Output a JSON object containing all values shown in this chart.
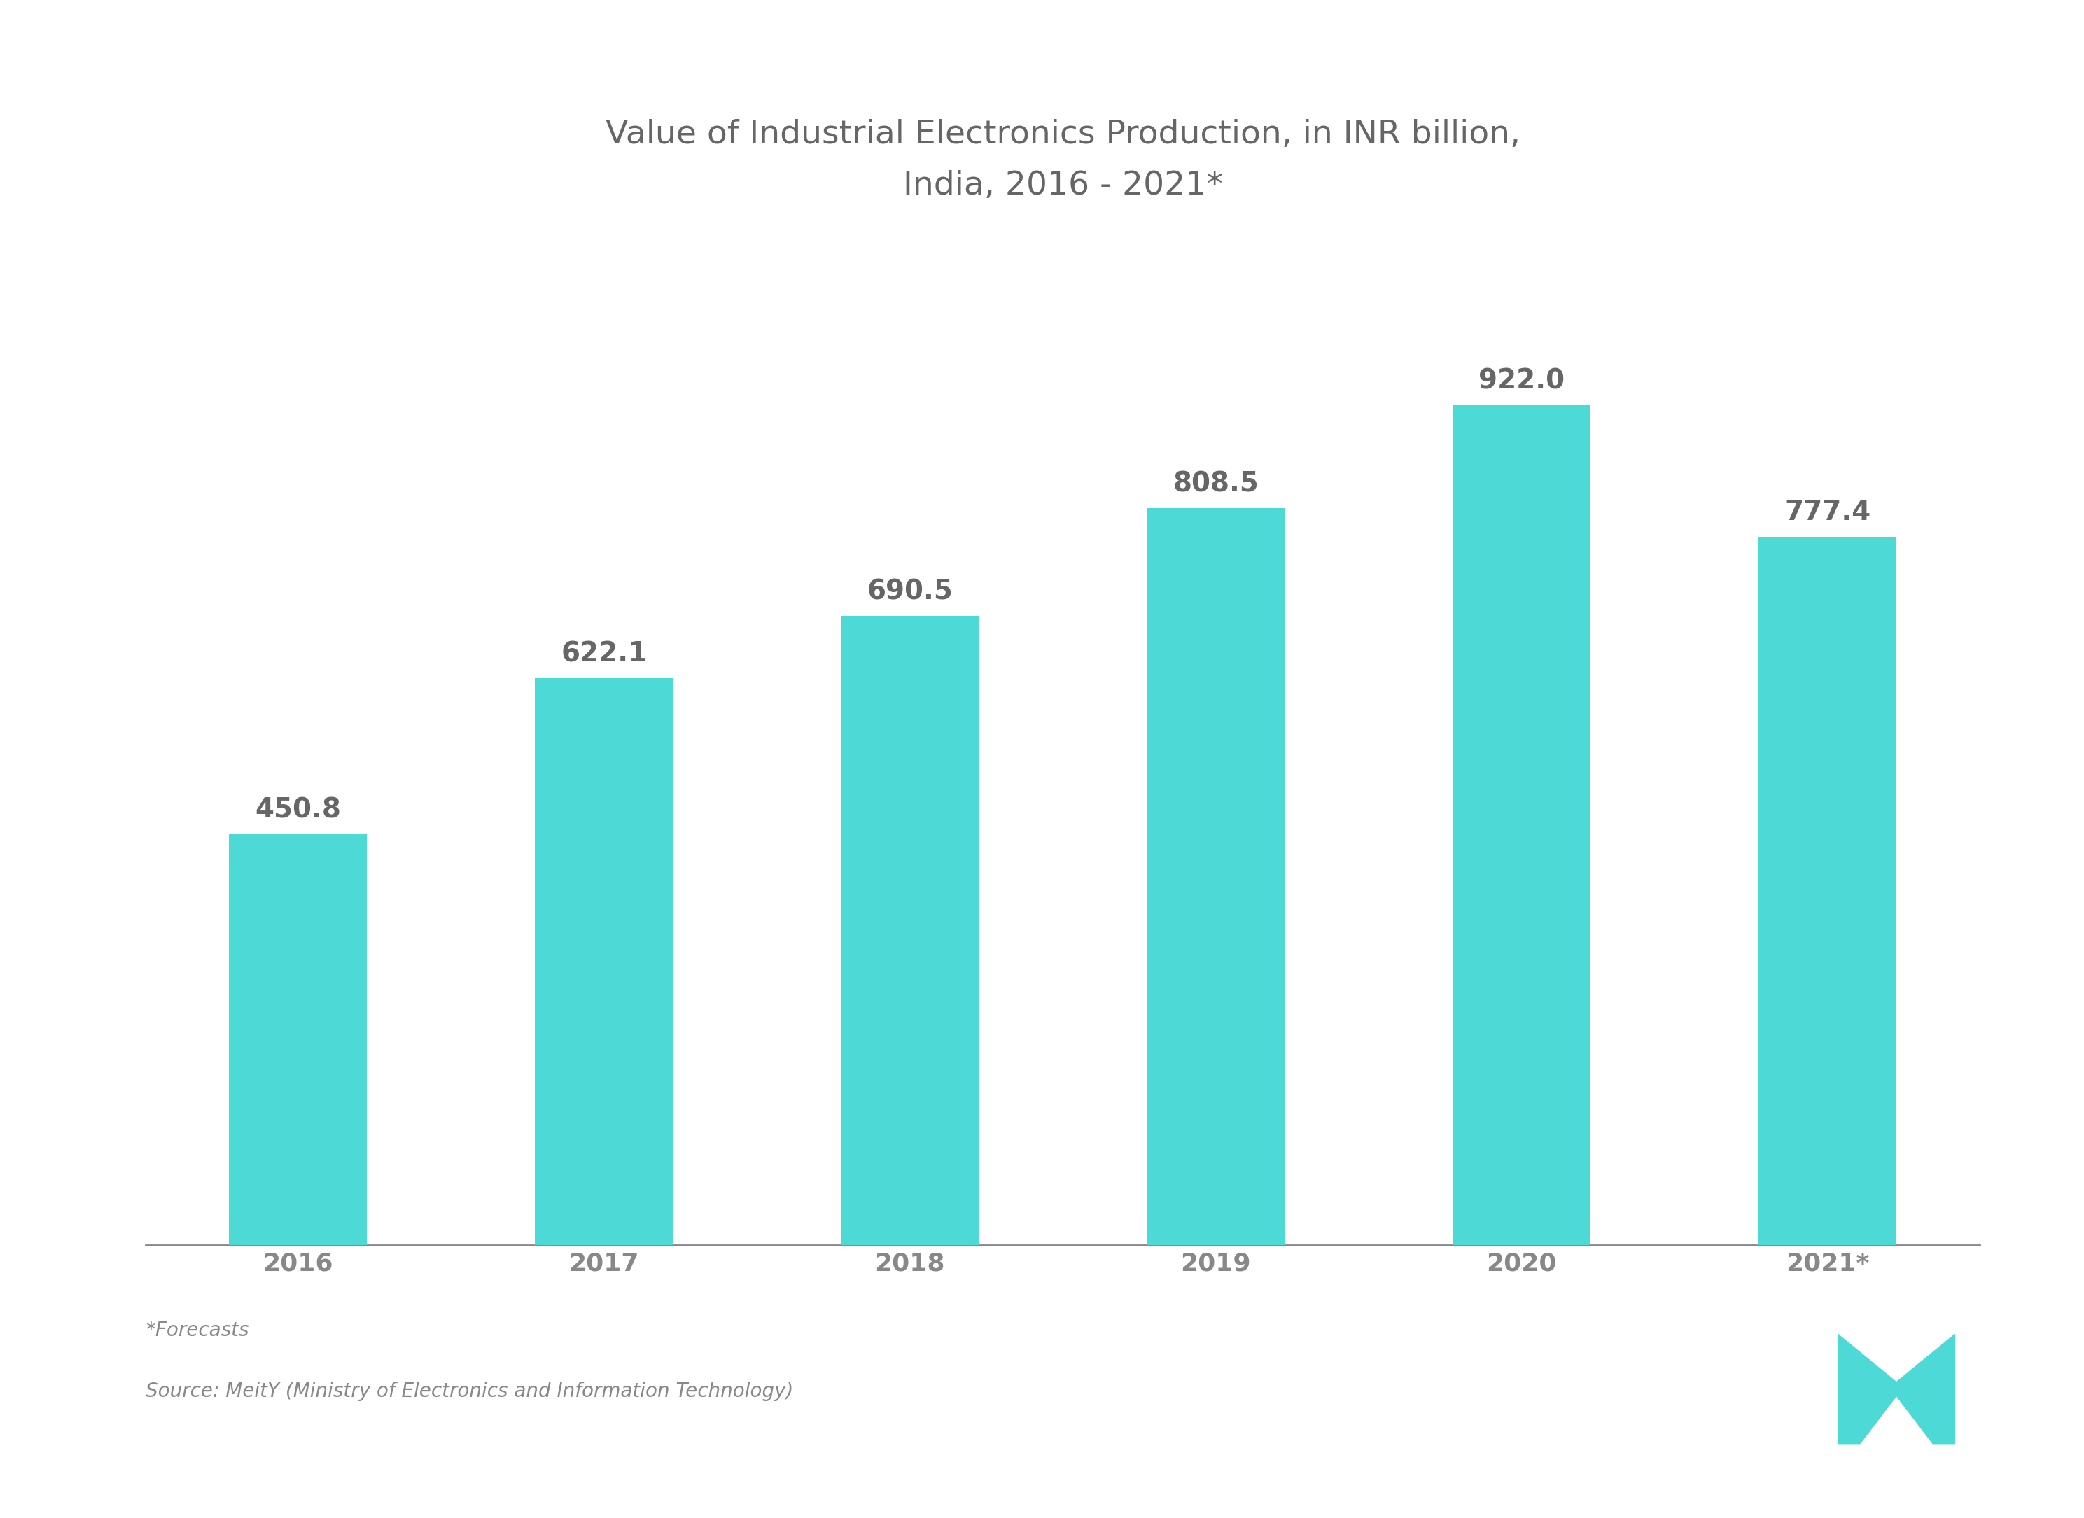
{
  "categories": [
    "2016",
    "2017",
    "2018",
    "2019",
    "2020",
    "2021*"
  ],
  "values": [
    450.8,
    622.1,
    690.5,
    808.5,
    922.0,
    777.4
  ],
  "bar_color": "#4dd9d5",
  "background_color": "#ffffff",
  "title_line1": "Value of Industrial Electronics Production, in INR billion,",
  "title_line2": "India, 2016 - 2021*",
  "title_color": "#666666",
  "axis_color": "#888888",
  "bar_label_color": "#666666",
  "tick_color": "#888888",
  "footnote1": "*Forecasts",
  "footnote2": "Source: MeitY (Ministry of Electronics and Information Technology)",
  "footnote_color": "#888888",
  "title_fontsize": 34,
  "label_fontsize": 28,
  "tick_fontsize": 26,
  "footnote_fontsize": 20,
  "ylim": [
    0,
    1100
  ],
  "bar_width": 0.45
}
